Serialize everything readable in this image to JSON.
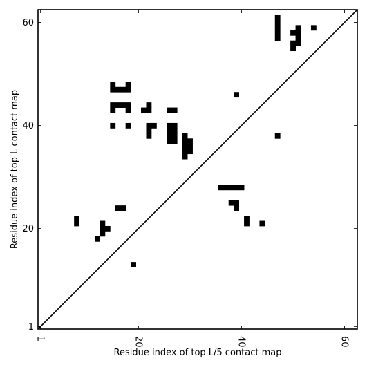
{
  "chart_data": {
    "type": "heatmap",
    "title": "",
    "xlabel": "Residue index of top L/5 contact map",
    "ylabel": "Residue index of top L contact map",
    "xlim": [
      0.5,
      62.5
    ],
    "ylim": [
      0.5,
      62.5
    ],
    "xticks": [
      1,
      20,
      40,
      60
    ],
    "yticks": [
      1,
      20,
      40,
      60
    ],
    "grid": false,
    "diagonal": true,
    "cell_color": "#000000",
    "cells": [
      [
        8,
        21
      ],
      [
        8,
        22
      ],
      [
        12,
        18
      ],
      [
        13,
        19
      ],
      [
        13,
        20
      ],
      [
        13,
        21
      ],
      [
        14,
        20
      ],
      [
        16,
        24
      ],
      [
        17,
        24
      ],
      [
        19,
        13
      ],
      [
        36,
        28
      ],
      [
        37,
        28
      ],
      [
        38,
        28
      ],
      [
        39,
        28
      ],
      [
        40,
        28
      ],
      [
        38,
        25
      ],
      [
        39,
        25
      ],
      [
        39,
        24
      ],
      [
        41,
        21
      ],
      [
        41,
        22
      ],
      [
        44,
        21
      ],
      [
        47,
        38
      ],
      [
        39,
        46
      ],
      [
        15,
        40
      ],
      [
        18,
        40
      ],
      [
        22,
        38
      ],
      [
        22,
        39
      ],
      [
        22,
        40
      ],
      [
        23,
        40
      ],
      [
        26,
        37
      ],
      [
        26,
        38
      ],
      [
        26,
        39
      ],
      [
        26,
        40
      ],
      [
        27,
        37
      ],
      [
        27,
        38
      ],
      [
        27,
        39
      ],
      [
        27,
        40
      ],
      [
        29,
        34
      ],
      [
        29,
        35
      ],
      [
        29,
        36
      ],
      [
        29,
        37
      ],
      [
        29,
        38
      ],
      [
        30,
        35
      ],
      [
        30,
        36
      ],
      [
        30,
        37
      ],
      [
        21,
        43
      ],
      [
        22,
        43
      ],
      [
        22,
        44
      ],
      [
        26,
        43
      ],
      [
        27,
        43
      ],
      [
        15,
        43
      ],
      [
        15,
        44
      ],
      [
        16,
        44
      ],
      [
        17,
        44
      ],
      [
        18,
        43
      ],
      [
        18,
        44
      ],
      [
        15,
        47
      ],
      [
        15,
        48
      ],
      [
        16,
        47
      ],
      [
        17,
        47
      ],
      [
        18,
        47
      ],
      [
        18,
        48
      ],
      [
        47,
        57
      ],
      [
        47,
        58
      ],
      [
        47,
        59
      ],
      [
        47,
        60
      ],
      [
        47,
        61
      ],
      [
        50,
        55
      ],
      [
        50,
        56
      ],
      [
        51,
        56
      ],
      [
        51,
        57
      ],
      [
        51,
        58
      ],
      [
        51,
        59
      ],
      [
        50,
        58
      ],
      [
        54,
        59
      ]
    ]
  }
}
